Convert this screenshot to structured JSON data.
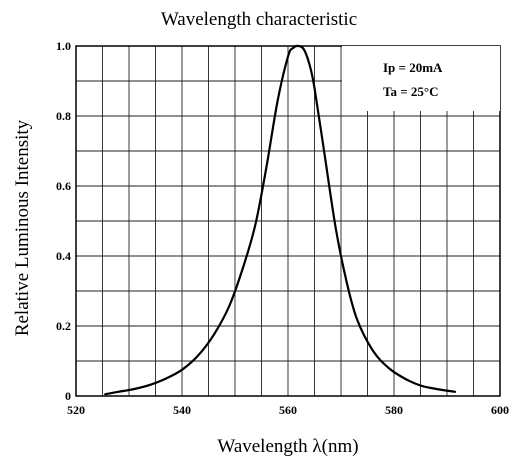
{
  "chart_data": {
    "type": "line",
    "title": "Wavelength characteristic",
    "xlabel": "Wavelength λ(nm)",
    "ylabel": "Relative Luminous Intensity",
    "xlim": [
      520,
      600
    ],
    "ylim": [
      0,
      1.0
    ],
    "x_ticks": [
      "520",
      "540",
      "560",
      "580",
      "600"
    ],
    "y_ticks": [
      "0",
      "0.2",
      "0.4",
      "0.6",
      "0.8",
      "1.0"
    ],
    "grid": true,
    "annotations": [
      "Ip = 20mA",
      "Ta = 25°C"
    ],
    "series": [
      {
        "x": [
          525.5,
          528,
          531,
          534,
          537,
          540,
          543,
          546,
          549,
          552,
          554,
          556,
          558,
          560,
          561,
          562,
          563,
          564,
          565,
          567,
          569,
          571,
          573,
          576,
          579,
          582,
          585,
          588,
          591.5
        ],
        "y": [
          0.005,
          0.012,
          0.02,
          0.032,
          0.05,
          0.075,
          0.115,
          0.175,
          0.26,
          0.39,
          0.5,
          0.66,
          0.84,
          0.97,
          0.995,
          1.0,
          0.99,
          0.95,
          0.88,
          0.68,
          0.48,
          0.33,
          0.22,
          0.13,
          0.08,
          0.05,
          0.03,
          0.02,
          0.012
        ]
      }
    ]
  }
}
